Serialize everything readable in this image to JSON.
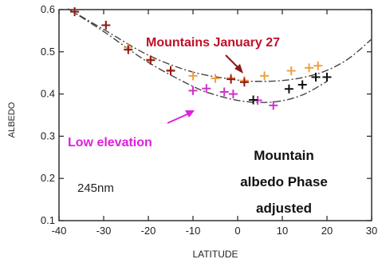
{
  "chart_data": {
    "type": "scatter",
    "xlabel": "LATITUDE",
    "ylabel": "ALBEDO",
    "xlim": [
      -40,
      30
    ],
    "ylim": [
      0.1,
      0.6
    ],
    "xticks": [
      -40,
      -30,
      -20,
      -10,
      0,
      10,
      20,
      30
    ],
    "yticks": [
      0.1,
      0.2,
      0.3,
      0.4,
      0.5,
      0.6
    ],
    "grid": false,
    "series": [
      {
        "name": "Mountains January 27",
        "marker": "plus",
        "color": "#f0a040",
        "x": [
          -36.5,
          -29.5,
          -24.5,
          -19.5,
          -15,
          -10,
          -5,
          -1.5,
          1.5,
          6,
          12,
          16,
          18
        ],
        "y": [
          0.595,
          0.563,
          0.51,
          0.482,
          0.457,
          0.443,
          0.437,
          0.438,
          0.432,
          0.443,
          0.455,
          0.462,
          0.467
        ]
      },
      {
        "marker": "plus",
        "color": "#8b1a1a",
        "x": [
          -36.5,
          -29.5,
          -24.5,
          -19.5,
          -15,
          -1.5,
          1.5
        ],
        "y": [
          0.595,
          0.563,
          0.505,
          0.48,
          0.455,
          0.435,
          0.428
        ]
      },
      {
        "name": "Low elevation",
        "marker": "plus",
        "color": "#cc33cc",
        "x": [
          -10,
          -7,
          -3,
          -1,
          4.5,
          8
        ],
        "y": [
          0.408,
          0.413,
          0.405,
          0.4,
          0.385,
          0.373
        ]
      },
      {
        "marker": "plus",
        "color": "#111111",
        "x": [
          3.5,
          11.5,
          14.5,
          17.5,
          20
        ],
        "y": [
          0.386,
          0.412,
          0.422,
          0.44,
          0.44
        ]
      }
    ],
    "fit_curves": [
      {
        "style": "dash-dot",
        "color": "#444444",
        "x": [
          -38,
          -30,
          -20,
          -10,
          0,
          5,
          10,
          15,
          20,
          25,
          30
        ],
        "y": [
          0.602,
          0.553,
          0.492,
          0.452,
          0.433,
          0.43,
          0.432,
          0.44,
          0.456,
          0.485,
          0.53
        ]
      },
      {
        "style": "dash-dot",
        "color": "#444444",
        "x": [
          -38,
          -30,
          -20,
          -10,
          -5,
          0,
          5,
          10,
          15,
          20
        ],
        "y": [
          0.602,
          0.548,
          0.475,
          0.418,
          0.398,
          0.385,
          0.38,
          0.384,
          0.4,
          0.43
        ]
      }
    ],
    "annotations": {
      "mountains_label": "Mountains January 27",
      "mountains_color": "#c0102a",
      "low_label": "Low elevation",
      "low_color": "#e020e0",
      "wavelength": "245nm",
      "caption_lines": [
        "Mountain",
        "albedo Phase",
        "adjusted"
      ]
    }
  }
}
